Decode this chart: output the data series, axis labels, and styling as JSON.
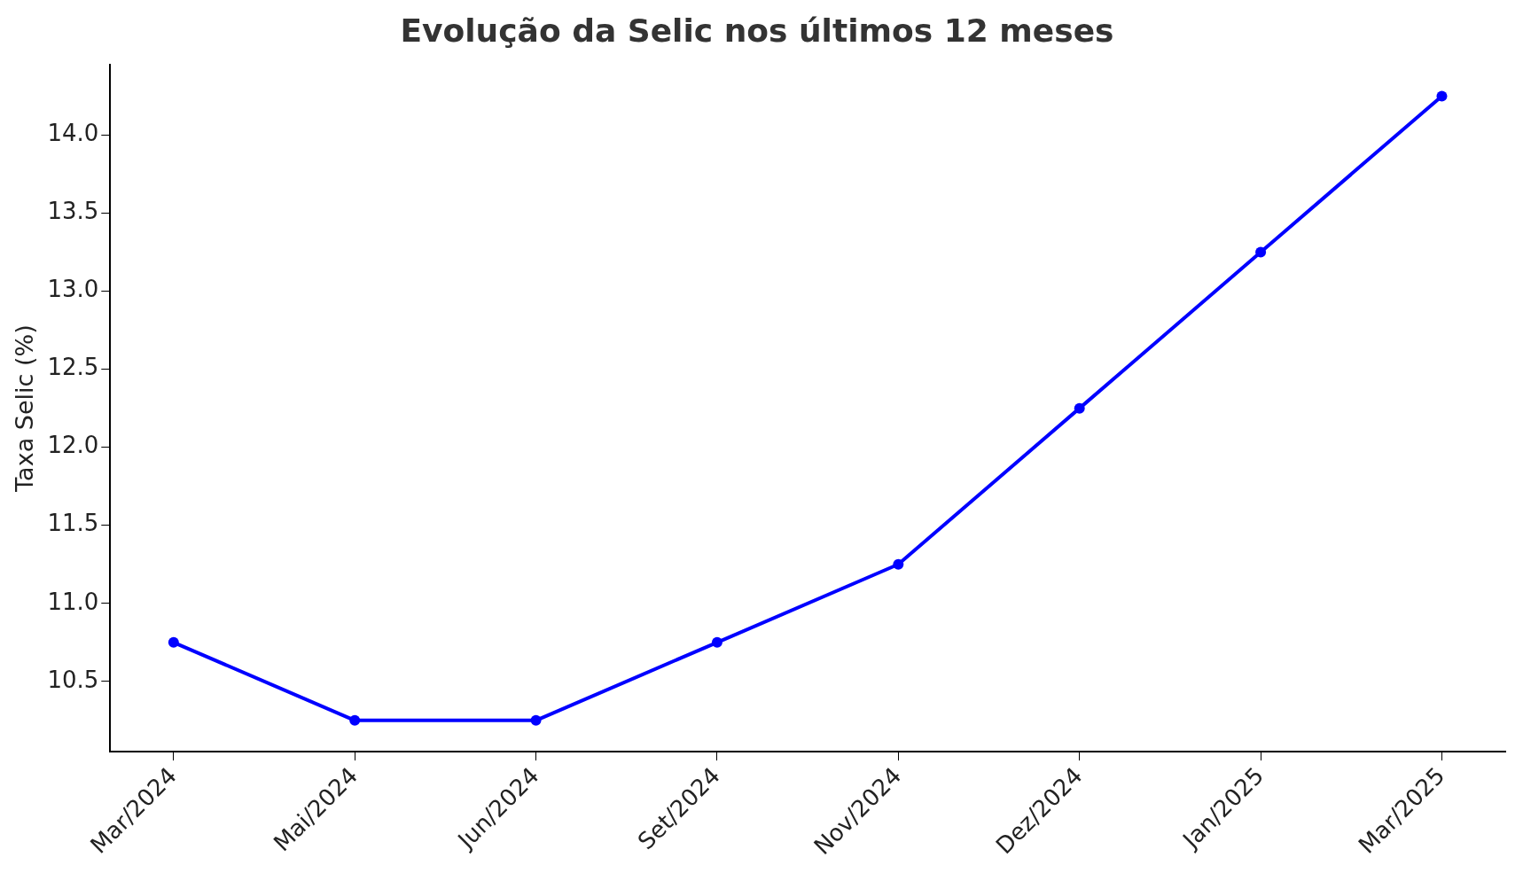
{
  "chart_data": {
    "type": "line",
    "title": "Evolução da Selic nos últimos 12 meses",
    "ylabel": "Taxa Selic (%)",
    "categories": [
      "Mar/2024",
      "Mai/2024",
      "Jun/2024",
      "Set/2024",
      "Nov/2024",
      "Dez/2024",
      "Jan/2025",
      "Mar/2025"
    ],
    "series": [
      {
        "color": "#0000ff",
        "values": [
          10.75,
          10.25,
          10.25,
          10.75,
          11.25,
          12.25,
          13.25,
          14.25
        ]
      }
    ],
    "ylim": [
      10.05,
      14.45
    ],
    "yticks": [
      10.5,
      {
        "value": 11,
        "label": "11.0"
      },
      11.5,
      {
        "value": 12,
        "label": "12.0"
      },
      12.5,
      {
        "value": 13,
        "label": "13.0"
      },
      13.5,
      {
        "value": 14,
        "label": "14.0"
      }
    ],
    "grid": false,
    "legend": false,
    "marker": "circle",
    "line_style": "solid"
  }
}
